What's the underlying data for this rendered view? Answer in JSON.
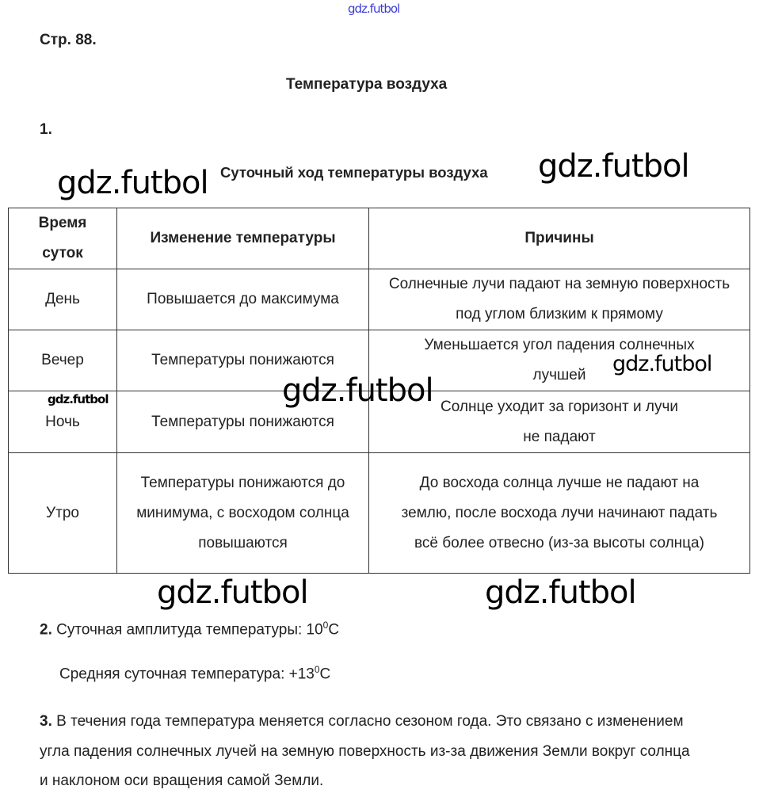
{
  "watermark": "gdz.futbol",
  "page_label": "Стр. 88.",
  "title": "Температура воздуха",
  "task1": {
    "number": "1.",
    "table_title": "Суточный ход температуры воздуха",
    "headers": [
      "Время суток",
      "Изменение температуры",
      "Причины"
    ],
    "rows": [
      {
        "time": "День",
        "change": "Повышается до максимума",
        "reason": "Солнечные лучи падают на земную поверхность под углом близким к прямому"
      },
      {
        "time": "Вечер",
        "change": "Температуры понижаются",
        "reason": "Уменьшается угол падения солнечных лучшей"
      },
      {
        "time": "Ночь",
        "change": "Температуры понижаются",
        "reason": "Солнце уходит за горизонт и лучи не падают"
      },
      {
        "time": "Утро",
        "change": "Температуры понижаются до минимума, с восходом солнца повышаются",
        "reason": "До восхода солнца лучше не падают на землю, после восхода лучи начинают падать всё более отвесно (из-за высоты солнца)"
      }
    ]
  },
  "task2": {
    "number": "2.",
    "amplitude_label": "Суточная амплитуда температуры: 10",
    "amplitude_sup": "0",
    "amplitude_unit": "C",
    "mean_label": "Средняя суточная температура: +13",
    "mean_sup": "0",
    "mean_unit": "C"
  },
  "task3": {
    "number": "3.",
    "text": "В течения года температура меняется согласно сезоном года. Это связано с изменением угла падения солнечных лучей на земную поверхность из-за движения Земли вокруг солнца и наклоном оси вращения самой Земли."
  }
}
